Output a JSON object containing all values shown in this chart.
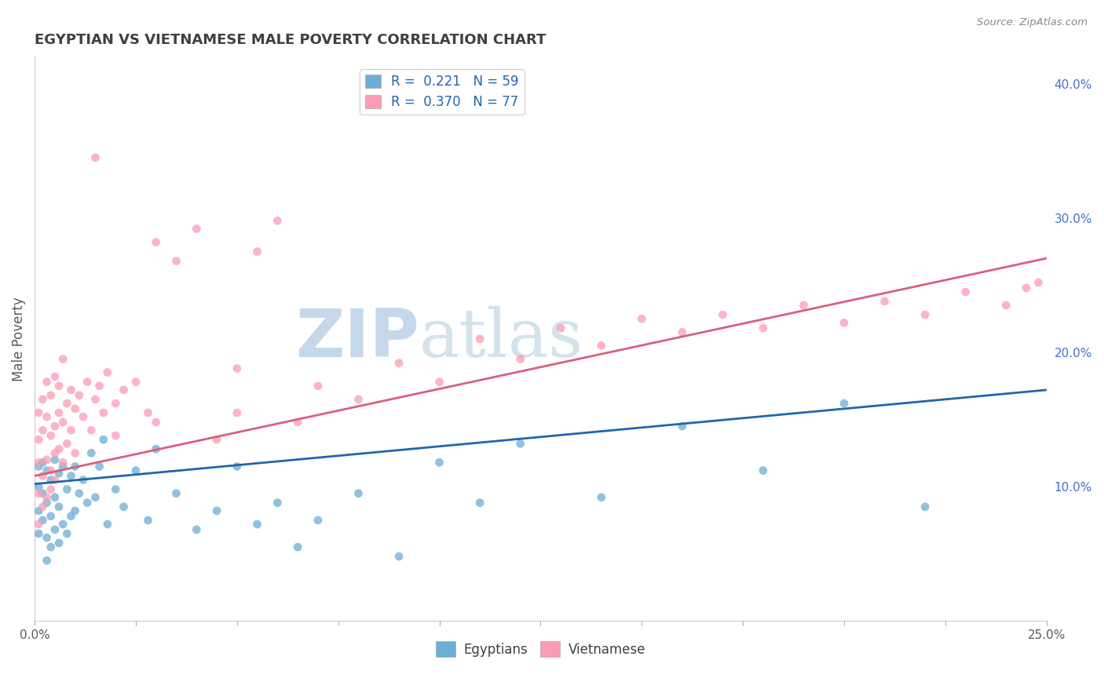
{
  "title": "EGYPTIAN VS VIETNAMESE MALE POVERTY CORRELATION CHART",
  "source": "Source: ZipAtlas.com",
  "ylabel": "Male Poverty",
  "ylabel_right_ticks": [
    "10.0%",
    "20.0%",
    "30.0%",
    "40.0%"
  ],
  "ylabel_right_vals": [
    0.1,
    0.2,
    0.3,
    0.4
  ],
  "xmin": 0.0,
  "xmax": 0.25,
  "ymin": 0.0,
  "ymax": 0.42,
  "r_egyptian": 0.221,
  "n_egyptian": 59,
  "r_vietnamese": 0.37,
  "n_vietnamese": 77,
  "color_egyptian": "#6baed6",
  "color_vietnamese": "#fc9bb3",
  "color_trendline_egyptian": "#2166ac",
  "color_trendline_vietnamese": "#d9607a",
  "watermark_text": "ZIPatlas",
  "watermark_color": "#c5d8ea",
  "background_color": "#ffffff",
  "grid_color": "#cccccc",
  "eg_trendline_x0": 0.0,
  "eg_trendline_y0": 0.102,
  "eg_trendline_x1": 0.25,
  "eg_trendline_y1": 0.172,
  "vi_trendline_x0": 0.0,
  "vi_trendline_y0": 0.108,
  "vi_trendline_x1": 0.25,
  "vi_trendline_y1": 0.27,
  "eg_points_x": [
    0.001,
    0.001,
    0.001,
    0.001,
    0.002,
    0.002,
    0.002,
    0.003,
    0.003,
    0.003,
    0.003,
    0.004,
    0.004,
    0.004,
    0.005,
    0.005,
    0.005,
    0.006,
    0.006,
    0.006,
    0.007,
    0.007,
    0.008,
    0.008,
    0.009,
    0.009,
    0.01,
    0.01,
    0.011,
    0.012,
    0.013,
    0.014,
    0.015,
    0.016,
    0.017,
    0.018,
    0.02,
    0.022,
    0.025,
    0.028,
    0.03,
    0.035,
    0.04,
    0.045,
    0.05,
    0.055,
    0.06,
    0.065,
    0.07,
    0.08,
    0.09,
    0.1,
    0.11,
    0.12,
    0.14,
    0.16,
    0.18,
    0.2,
    0.22
  ],
  "eg_points_y": [
    0.1,
    0.115,
    0.082,
    0.065,
    0.118,
    0.095,
    0.075,
    0.112,
    0.088,
    0.062,
    0.045,
    0.105,
    0.078,
    0.055,
    0.12,
    0.092,
    0.068,
    0.11,
    0.085,
    0.058,
    0.115,
    0.072,
    0.098,
    0.065,
    0.108,
    0.078,
    0.115,
    0.082,
    0.095,
    0.105,
    0.088,
    0.125,
    0.092,
    0.115,
    0.135,
    0.072,
    0.098,
    0.085,
    0.112,
    0.075,
    0.128,
    0.095,
    0.068,
    0.082,
    0.115,
    0.072,
    0.088,
    0.055,
    0.075,
    0.095,
    0.048,
    0.118,
    0.088,
    0.132,
    0.092,
    0.145,
    0.112,
    0.162,
    0.085
  ],
  "vi_points_x": [
    0.001,
    0.001,
    0.001,
    0.001,
    0.001,
    0.002,
    0.002,
    0.002,
    0.002,
    0.003,
    0.003,
    0.003,
    0.003,
    0.004,
    0.004,
    0.004,
    0.004,
    0.005,
    0.005,
    0.005,
    0.005,
    0.006,
    0.006,
    0.006,
    0.007,
    0.007,
    0.007,
    0.008,
    0.008,
    0.009,
    0.009,
    0.01,
    0.01,
    0.011,
    0.012,
    0.013,
    0.014,
    0.015,
    0.016,
    0.017,
    0.018,
    0.02,
    0.022,
    0.025,
    0.028,
    0.03,
    0.035,
    0.04,
    0.045,
    0.05,
    0.055,
    0.06,
    0.065,
    0.07,
    0.08,
    0.09,
    0.1,
    0.11,
    0.12,
    0.13,
    0.14,
    0.15,
    0.16,
    0.17,
    0.18,
    0.19,
    0.2,
    0.21,
    0.22,
    0.23,
    0.24,
    0.245,
    0.248,
    0.05,
    0.03,
    0.02,
    0.015
  ],
  "vi_points_y": [
    0.118,
    0.135,
    0.095,
    0.155,
    0.072,
    0.142,
    0.108,
    0.165,
    0.085,
    0.152,
    0.12,
    0.178,
    0.092,
    0.138,
    0.112,
    0.168,
    0.098,
    0.145,
    0.125,
    0.182,
    0.105,
    0.155,
    0.128,
    0.175,
    0.148,
    0.118,
    0.195,
    0.162,
    0.132,
    0.172,
    0.142,
    0.158,
    0.125,
    0.168,
    0.152,
    0.178,
    0.142,
    0.165,
    0.175,
    0.155,
    0.185,
    0.162,
    0.172,
    0.178,
    0.155,
    0.282,
    0.268,
    0.292,
    0.135,
    0.188,
    0.275,
    0.298,
    0.148,
    0.175,
    0.165,
    0.192,
    0.178,
    0.21,
    0.195,
    0.218,
    0.205,
    0.225,
    0.215,
    0.228,
    0.218,
    0.235,
    0.222,
    0.238,
    0.228,
    0.245,
    0.235,
    0.248,
    0.252,
    0.155,
    0.148,
    0.138,
    0.345
  ]
}
